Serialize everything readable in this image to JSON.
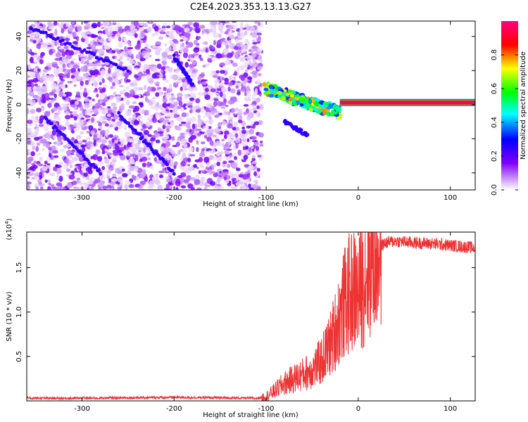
{
  "figure_title": "C2E4.2023.353.13.13.G27",
  "chart_data": [
    {
      "type": "heatmap",
      "title": "C2E4.2023.353.13.13.G27",
      "xlabel": "Height of straight line (km)",
      "ylabel": "Frequency (Hz)",
      "xlim": [
        -360,
        127
      ],
      "ylim": [
        -50,
        49
      ],
      "x_ticks": [
        -300,
        -200,
        -100,
        0,
        100
      ],
      "y_ticks": [
        -40,
        -20,
        0,
        20,
        40
      ],
      "colorbar": {
        "label": "Normalized spectral amplitude",
        "range": [
          0,
          1
        ],
        "ticks": [
          0.0,
          0.2,
          0.4,
          0.6,
          0.8
        ],
        "tick_labels": [
          "0.0",
          "0.2",
          "0.4",
          "0.6",
          "0.8"
        ],
        "colors": [
          "#ffffff",
          "#7f00ff",
          "#0000ff",
          "#00ffff",
          "#00ff00",
          "#ffff00",
          "#ff0000",
          "#ff0080"
        ]
      },
      "regions": [
        {
          "description_of_data": "broadband noise",
          "x": [
            -360,
            -105
          ],
          "y": [
            -50,
            49
          ],
          "amplitude": [
            0.02,
            0.2
          ]
        },
        {
          "description_of_data": "transition",
          "x": [
            -105,
            -20
          ],
          "y": [
            -3,
            12
          ],
          "amplitude": [
            0.3,
            0.8
          ]
        },
        {
          "description_of_data": "carrier tone",
          "x": [
            -20,
            127
          ],
          "y": [
            0,
            2.5
          ],
          "amplitude": [
            0.85,
            0.95
          ]
        }
      ],
      "streaks": [
        {
          "x": [
            -355,
            -250
          ],
          "y": [
            45,
            20
          ]
        },
        {
          "x": [
            -200,
            -180
          ],
          "y": [
            28,
            12
          ]
        },
        {
          "x": [
            -340,
            -280
          ],
          "y": [
            -8,
            -40
          ]
        },
        {
          "x": [
            -260,
            -200
          ],
          "y": [
            -5,
            -40
          ]
        },
        {
          "x": [
            -80,
            -55
          ],
          "y": [
            -10,
            -18
          ]
        }
      ]
    },
    {
      "type": "line",
      "xlabel": "Height of straight line (km)",
      "ylabel": "SNR (10 * v/v)",
      "y_multiplier_label": "(x10",
      "y_multiplier_exp": "4",
      "y_multiplier_close": ")",
      "xlim": [
        -360,
        127
      ],
      "ylim": [
        0,
        19000
      ],
      "x_ticks": [
        -300,
        -200,
        -100,
        0,
        100
      ],
      "y_ticks": [
        5000,
        10000,
        15000
      ],
      "y_tick_labels": [
        "0.5",
        "1.0",
        "1.5"
      ],
      "color": "#ee3333",
      "series": [
        {
          "x": [
            -360,
            -300,
            -200,
            -110,
            -100,
            -90,
            -80,
            -70,
            -60,
            -50,
            -40,
            -30,
            -25,
            -20,
            -15,
            -10,
            -5,
            0,
            5,
            10,
            15,
            20,
            25,
            30,
            40,
            60,
            80,
            100,
            120,
            127
          ],
          "y": [
            300,
            300,
            400,
            300,
            500,
            1200,
            2000,
            2500,
            3000,
            3500,
            4500,
            6500,
            8000,
            9500,
            11000,
            12000,
            12500,
            12000,
            13500,
            15000,
            16000,
            17000,
            17500,
            17800,
            18000,
            17800,
            17700,
            17500,
            17300,
            17200
          ]
        }
      ]
    }
  ]
}
